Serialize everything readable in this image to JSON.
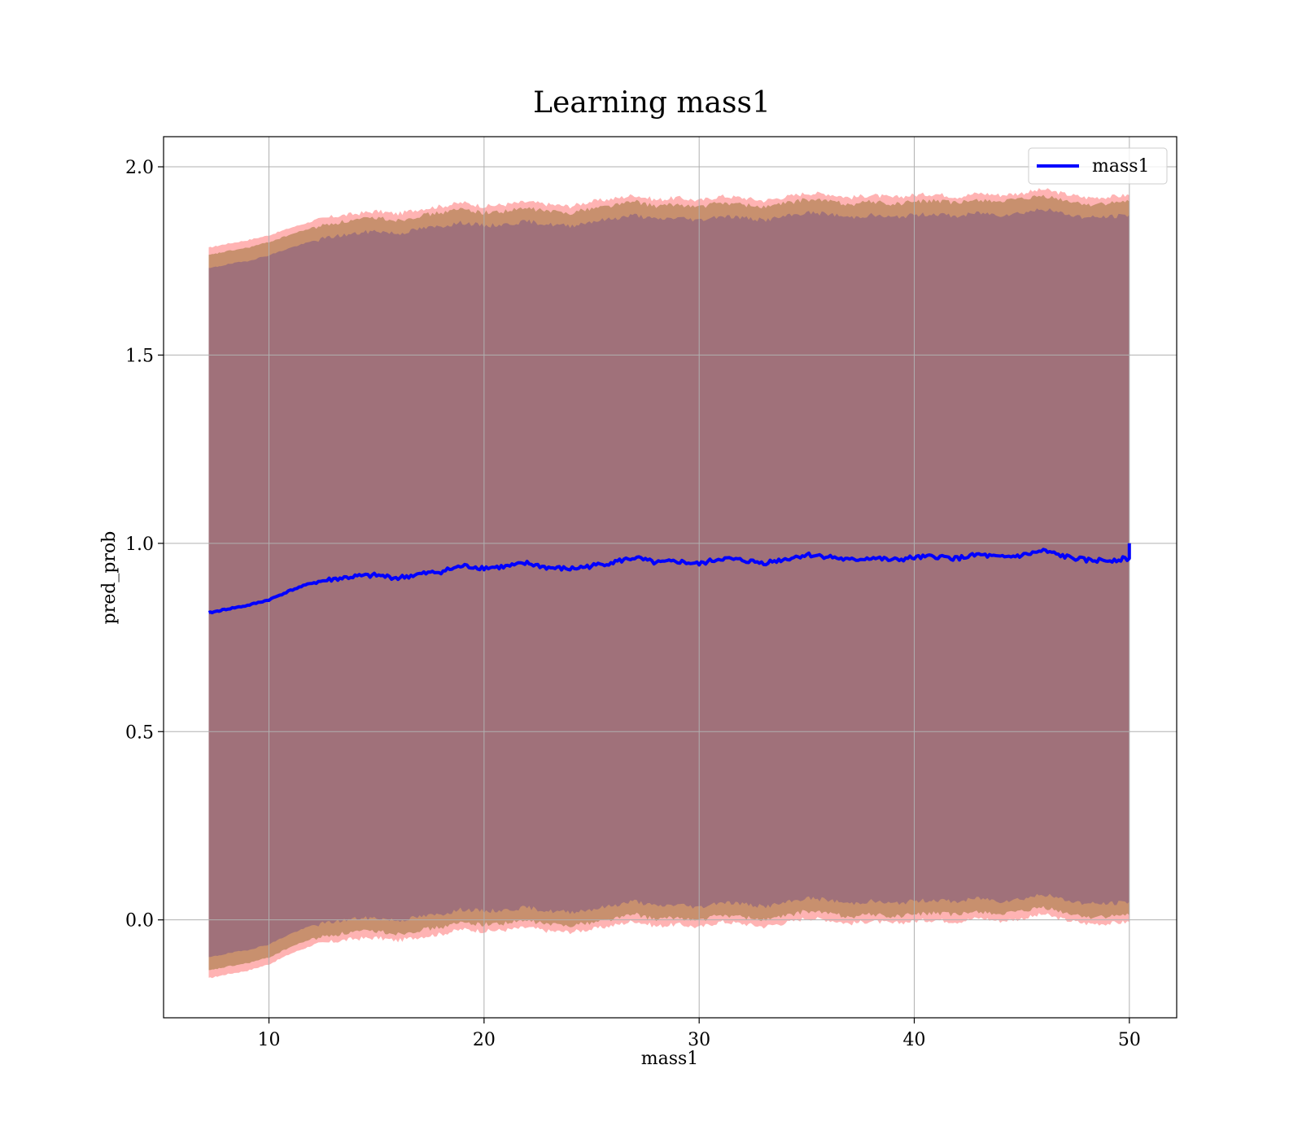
{
  "chart_data": {
    "type": "line",
    "title": "Learning mass1",
    "xlabel": "mass1",
    "ylabel": "pred_prob",
    "xlim": [
      5.1,
      52.2
    ],
    "ylim": [
      -0.26,
      2.08
    ],
    "xticks": [
      10,
      20,
      30,
      40,
      50
    ],
    "yticks": [
      0.0,
      0.5,
      1.0,
      1.5,
      2.0
    ],
    "grid": true,
    "legend": {
      "position": "top-right",
      "entries": [
        "mass1"
      ]
    },
    "colors": {
      "line": "#0000ff",
      "outer_band": "#ff9999",
      "middle_band": "#c8906e",
      "inner_band": "#a0717a",
      "grid": "#b0b0b0"
    },
    "x": [
      7.2,
      8,
      9,
      10,
      11,
      12,
      13,
      14,
      15,
      16,
      17,
      18,
      19,
      20,
      21,
      22,
      23,
      24,
      25,
      26,
      27,
      28,
      29,
      30,
      31,
      32,
      33,
      34,
      35,
      36,
      37,
      38,
      39,
      40,
      41,
      42,
      43,
      44,
      45,
      46,
      47,
      48,
      49,
      50
    ],
    "series": [
      {
        "name": "mass1",
        "values": [
          0.815,
          0.825,
          0.835,
          0.85,
          0.875,
          0.895,
          0.905,
          0.912,
          0.915,
          0.908,
          0.918,
          0.925,
          0.94,
          0.935,
          0.938,
          0.947,
          0.935,
          0.932,
          0.94,
          0.95,
          0.962,
          0.948,
          0.952,
          0.945,
          0.96,
          0.955,
          0.948,
          0.958,
          0.97,
          0.965,
          0.955,
          0.962,
          0.955,
          0.962,
          0.965,
          0.96,
          0.97,
          0.962,
          0.968,
          0.98,
          0.965,
          0.955,
          0.955,
          0.96
        ]
      }
    ],
    "bands": [
      {
        "upper": [
          1.785,
          1.795,
          1.805,
          1.818,
          1.838,
          1.855,
          1.868,
          1.875,
          1.882,
          1.875,
          1.888,
          1.895,
          1.905,
          1.895,
          1.9,
          1.907,
          1.9,
          1.895,
          1.908,
          1.915,
          1.925,
          1.912,
          1.918,
          1.91,
          1.922,
          1.918,
          1.91,
          1.92,
          1.93,
          1.928,
          1.918,
          1.925,
          1.918,
          1.925,
          1.928,
          1.92,
          1.93,
          1.925,
          1.93,
          1.94,
          1.928,
          1.918,
          1.92,
          1.925
        ],
        "lower": [
          -0.155,
          -0.145,
          -0.135,
          -0.118,
          -0.09,
          -0.068,
          -0.058,
          -0.05,
          -0.048,
          -0.055,
          -0.045,
          -0.038,
          -0.025,
          -0.03,
          -0.027,
          -0.02,
          -0.03,
          -0.032,
          -0.025,
          -0.015,
          -0.003,
          -0.017,
          -0.012,
          -0.02,
          -0.005,
          -0.01,
          -0.018,
          -0.008,
          0.005,
          0.0,
          -0.01,
          -0.003,
          -0.01,
          -0.003,
          0.0,
          -0.005,
          0.005,
          -0.003,
          0.003,
          0.015,
          0.0,
          -0.01,
          -0.01,
          -0.005
        ]
      },
      {
        "upper": [
          1.765,
          1.775,
          1.785,
          1.8,
          1.82,
          1.838,
          1.85,
          1.858,
          1.865,
          1.858,
          1.87,
          1.878,
          1.888,
          1.878,
          1.882,
          1.89,
          1.882,
          1.878,
          1.89,
          1.898,
          1.908,
          1.895,
          1.9,
          1.893,
          1.905,
          1.9,
          1.893,
          1.903,
          1.913,
          1.91,
          1.9,
          1.908,
          1.9,
          1.908,
          1.91,
          1.903,
          1.913,
          1.908,
          1.913,
          1.922,
          1.91,
          1.9,
          1.902,
          1.908
        ],
        "lower": [
          -0.135,
          -0.125,
          -0.115,
          -0.1,
          -0.072,
          -0.05,
          -0.04,
          -0.032,
          -0.03,
          -0.037,
          -0.027,
          -0.02,
          -0.007,
          -0.012,
          -0.009,
          -0.002,
          -0.012,
          -0.014,
          -0.007,
          0.003,
          0.015,
          0.001,
          0.006,
          -0.002,
          0.013,
          0.008,
          0.0,
          0.01,
          0.023,
          0.018,
          0.008,
          0.015,
          0.008,
          0.015,
          0.018,
          0.013,
          0.023,
          0.015,
          0.021,
          0.033,
          0.018,
          0.008,
          0.008,
          0.013
        ]
      },
      {
        "upper": [
          1.73,
          1.74,
          1.75,
          1.765,
          1.785,
          1.802,
          1.815,
          1.822,
          1.83,
          1.822,
          1.835,
          1.842,
          1.852,
          1.843,
          1.847,
          1.855,
          1.847,
          1.843,
          1.855,
          1.862,
          1.872,
          1.86,
          1.865,
          1.858,
          1.87,
          1.865,
          1.858,
          1.868,
          1.878,
          1.875,
          1.865,
          1.872,
          1.865,
          1.872,
          1.875,
          1.868,
          1.878,
          1.872,
          1.878,
          1.888,
          1.875,
          1.865,
          1.867,
          1.872
        ],
        "lower": [
          -0.1,
          -0.09,
          -0.08,
          -0.065,
          -0.037,
          -0.015,
          -0.005,
          0.003,
          0.005,
          -0.002,
          0.008,
          0.015,
          0.028,
          0.023,
          0.026,
          0.033,
          0.023,
          0.021,
          0.028,
          0.038,
          0.05,
          0.036,
          0.041,
          0.033,
          0.048,
          0.043,
          0.035,
          0.045,
          0.058,
          0.053,
          0.043,
          0.05,
          0.043,
          0.05,
          0.053,
          0.048,
          0.058,
          0.05,
          0.056,
          0.068,
          0.053,
          0.043,
          0.043,
          0.048
        ]
      }
    ],
    "end_value": 1.0
  }
}
